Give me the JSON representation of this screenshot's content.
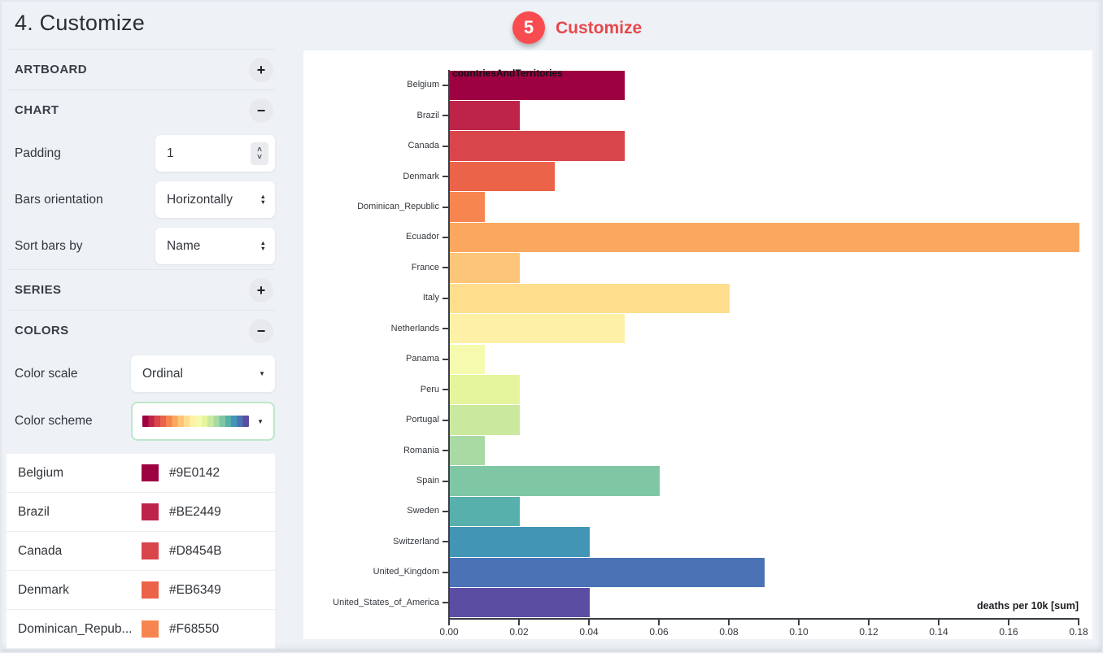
{
  "sidebar": {
    "title": "4. Customize",
    "sections": {
      "artboard": {
        "label": "ARTBOARD",
        "toggle": "+"
      },
      "chart": {
        "label": "CHART",
        "toggle": "−"
      },
      "series": {
        "label": "SERIES",
        "toggle": "+"
      },
      "colors": {
        "label": "COLORS",
        "toggle": "−"
      }
    },
    "controls": {
      "padding": {
        "label": "Padding",
        "value": "1"
      },
      "orientation": {
        "label": "Bars orientation",
        "value": "Horizontally"
      },
      "sort": {
        "label": "Sort bars by",
        "value": "Name"
      },
      "color_scale": {
        "label": "Color scale",
        "value": "Ordinal"
      },
      "color_scheme": {
        "label": "Color scheme"
      }
    },
    "color_list": [
      {
        "name": "Belgium",
        "hex": "#9E0142"
      },
      {
        "name": "Brazil",
        "hex": "#BE2449"
      },
      {
        "name": "Canada",
        "hex": "#D8454B"
      },
      {
        "name": "Denmark",
        "hex": "#EB6349"
      },
      {
        "name": "Dominican_Repub...",
        "hex": "#F68550"
      }
    ]
  },
  "icons": {
    "stepper_up": "˄",
    "stepper_down": "˅",
    "caret_up_small": "▲",
    "caret_down_small": "▼",
    "dropdown_caret": "▼"
  },
  "annotation": {
    "step_number": "5",
    "label": "Customize"
  },
  "chart_data": {
    "type": "bar",
    "orientation": "horizontal",
    "series_label": "countriesAndTerritories",
    "xlabel": "deaths per 10k [sum]",
    "xlim": [
      0,
      0.18
    ],
    "x_ticks": [
      "0.00",
      "0.02",
      "0.04",
      "0.06",
      "0.08",
      "0.10",
      "0.12",
      "0.14",
      "0.16",
      "0.18"
    ],
    "categories": [
      "Belgium",
      "Brazil",
      "Canada",
      "Denmark",
      "Dominican_Republic",
      "Ecuador",
      "France",
      "Italy",
      "Netherlands",
      "Panama",
      "Peru",
      "Portugal",
      "Romania",
      "Spain",
      "Sweden",
      "Switzerland",
      "United_Kingdom",
      "United_States_of_America"
    ],
    "values": [
      0.05,
      0.02,
      0.05,
      0.03,
      0.01,
      0.18,
      0.02,
      0.08,
      0.05,
      0.01,
      0.02,
      0.02,
      0.01,
      0.06,
      0.02,
      0.04,
      0.09,
      0.04
    ],
    "colors": [
      "#9E0142",
      "#BE2449",
      "#D8454B",
      "#EB6349",
      "#F68550",
      "#FAA85F",
      "#FDC577",
      "#FEDD8D",
      "#FEF0A7",
      "#F6FAAF",
      "#E5F59D",
      "#CAE99E",
      "#A9DAA4",
      "#7FC7A4",
      "#58B0AC",
      "#4295B5",
      "#4A72B4",
      "#5B4DA1"
    ],
    "grid": false,
    "legend": false
  }
}
